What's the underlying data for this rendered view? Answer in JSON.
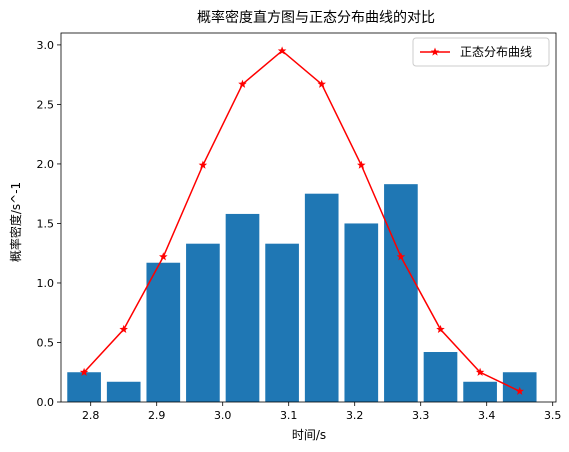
{
  "chart_data": {
    "type": "bar",
    "title": "概率密度直方图与正态分布曲线的对比",
    "xlabel": "时间/s",
    "ylabel": "概率密度/s^-1",
    "xlim": [
      2.755,
      3.505
    ],
    "ylim": [
      0.0,
      3.1
    ],
    "xticks": [
      "2.8",
      "2.9",
      "3.0",
      "3.1",
      "3.2",
      "3.3",
      "3.4",
      "3.5"
    ],
    "yticks": [
      "0.0",
      "0.5",
      "1.0",
      "1.5",
      "2.0",
      "2.5",
      "3.0"
    ],
    "legend_position": "top-right",
    "colors": {
      "bars": "#1f77b4",
      "curve": "#ff0000"
    },
    "histogram": {
      "x": [
        2.79,
        2.85,
        2.91,
        2.97,
        3.03,
        3.09,
        3.15,
        3.21,
        3.27,
        3.33,
        3.39,
        3.45
      ],
      "values": [
        0.25,
        0.17,
        1.17,
        1.33,
        1.58,
        1.33,
        1.75,
        1.5,
        1.83,
        0.42,
        0.17,
        0.25
      ],
      "bin_width": 0.06
    },
    "series": [
      {
        "name": "正态分布曲线",
        "type": "line",
        "marker": "star",
        "x": [
          2.79,
          2.85,
          2.91,
          2.97,
          3.03,
          3.09,
          3.15,
          3.21,
          3.27,
          3.33,
          3.39,
          3.45
        ],
        "values": [
          0.25,
          0.61,
          1.22,
          1.99,
          2.67,
          2.95,
          2.67,
          1.99,
          1.22,
          0.61,
          0.25,
          0.09
        ]
      }
    ]
  }
}
